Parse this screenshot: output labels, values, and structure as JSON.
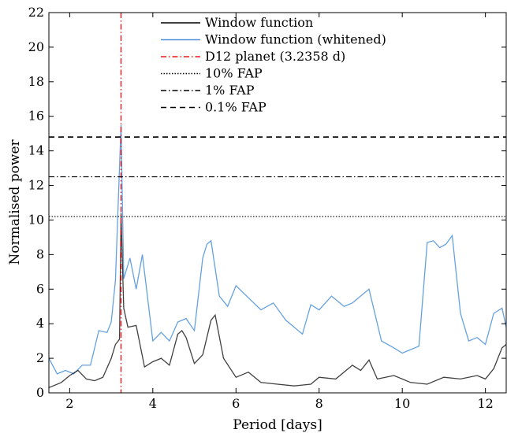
{
  "chart_data": {
    "type": "line",
    "title": "",
    "xlabel": "Period [days]",
    "ylabel": "Normalised power",
    "xlim": [
      1.5,
      12.5
    ],
    "ylim": [
      0,
      22
    ],
    "x_ticks": [
      2,
      4,
      6,
      8,
      10,
      12
    ],
    "y_ticks": [
      0,
      2,
      4,
      6,
      8,
      10,
      12,
      14,
      16,
      18,
      20,
      22
    ],
    "grid": false,
    "legend_position": "top-center",
    "colors": {
      "window": "#000000",
      "whitened": "#4a90d9",
      "planet": "#e8181a",
      "fap": "#000000"
    },
    "series": [
      {
        "name": "Window function",
        "style": "solid",
        "x": [
          1.5,
          1.8,
          2.0,
          2.2,
          2.4,
          2.6,
          2.8,
          3.0,
          3.1,
          3.2,
          3.2358,
          3.3,
          3.4,
          3.6,
          3.8,
          4.0,
          4.2,
          4.4,
          4.6,
          4.7,
          4.8,
          5.0,
          5.2,
          5.4,
          5.5,
          5.7,
          6.0,
          6.3,
          6.6,
          7.0,
          7.4,
          7.8,
          8.0,
          8.4,
          8.8,
          9.0,
          9.2,
          9.4,
          9.8,
          10.2,
          10.6,
          11.0,
          11.4,
          11.8,
          12.0,
          12.2,
          12.4,
          12.5
        ],
        "y": [
          0.3,
          0.6,
          1.0,
          1.3,
          0.8,
          0.7,
          0.9,
          2.0,
          2.8,
          3.1,
          10.4,
          4.9,
          3.8,
          3.9,
          1.5,
          1.8,
          2.0,
          1.6,
          3.4,
          3.6,
          3.2,
          1.7,
          2.2,
          4.2,
          4.5,
          2.0,
          0.9,
          1.2,
          0.6,
          0.5,
          0.4,
          0.5,
          0.9,
          0.8,
          1.6,
          1.3,
          1.9,
          0.8,
          1.0,
          0.6,
          0.5,
          0.9,
          0.8,
          1.0,
          0.8,
          1.4,
          2.6,
          2.8
        ]
      },
      {
        "name": "Window function (whitened)",
        "style": "solid",
        "x": [
          1.5,
          1.7,
          1.9,
          2.1,
          2.3,
          2.5,
          2.7,
          2.9,
          3.0,
          3.1,
          3.2358,
          3.3,
          3.45,
          3.6,
          3.75,
          4.0,
          4.2,
          4.4,
          4.6,
          4.8,
          5.0,
          5.2,
          5.3,
          5.4,
          5.6,
          5.8,
          6.0,
          6.3,
          6.6,
          6.9,
          7.2,
          7.6,
          7.8,
          8.0,
          8.3,
          8.6,
          8.8,
          9.2,
          9.5,
          9.8,
          10.0,
          10.2,
          10.4,
          10.6,
          10.75,
          10.9,
          11.05,
          11.2,
          11.4,
          11.6,
          11.8,
          12.0,
          12.2,
          12.4,
          12.5
        ],
        "y": [
          2.0,
          1.1,
          1.3,
          1.1,
          1.6,
          1.6,
          3.6,
          3.5,
          4.1,
          6.5,
          15.5,
          6.6,
          7.8,
          6.0,
          8.0,
          3.0,
          3.5,
          3.0,
          4.1,
          4.3,
          3.6,
          7.8,
          8.6,
          8.8,
          5.6,
          5.0,
          6.2,
          5.5,
          4.8,
          5.2,
          4.2,
          3.4,
          5.1,
          4.8,
          5.6,
          5.0,
          5.2,
          6.0,
          3.0,
          2.6,
          2.3,
          2.5,
          2.7,
          8.7,
          8.8,
          8.4,
          8.6,
          9.1,
          4.6,
          3.0,
          3.2,
          2.8,
          4.6,
          4.9,
          3.8
        ]
      },
      {
        "name": "D12 planet (3.2358 d)",
        "style": "dash-dot",
        "vline_x": 3.2358
      },
      {
        "name": "10% FAP",
        "style": "dotted",
        "hline_y": 10.2
      },
      {
        "name": "1% FAP",
        "style": "dash-dot",
        "hline_y": 12.5
      },
      {
        "name": "0.1% FAP",
        "style": "dashed",
        "hline_y": 14.8
      }
    ]
  }
}
